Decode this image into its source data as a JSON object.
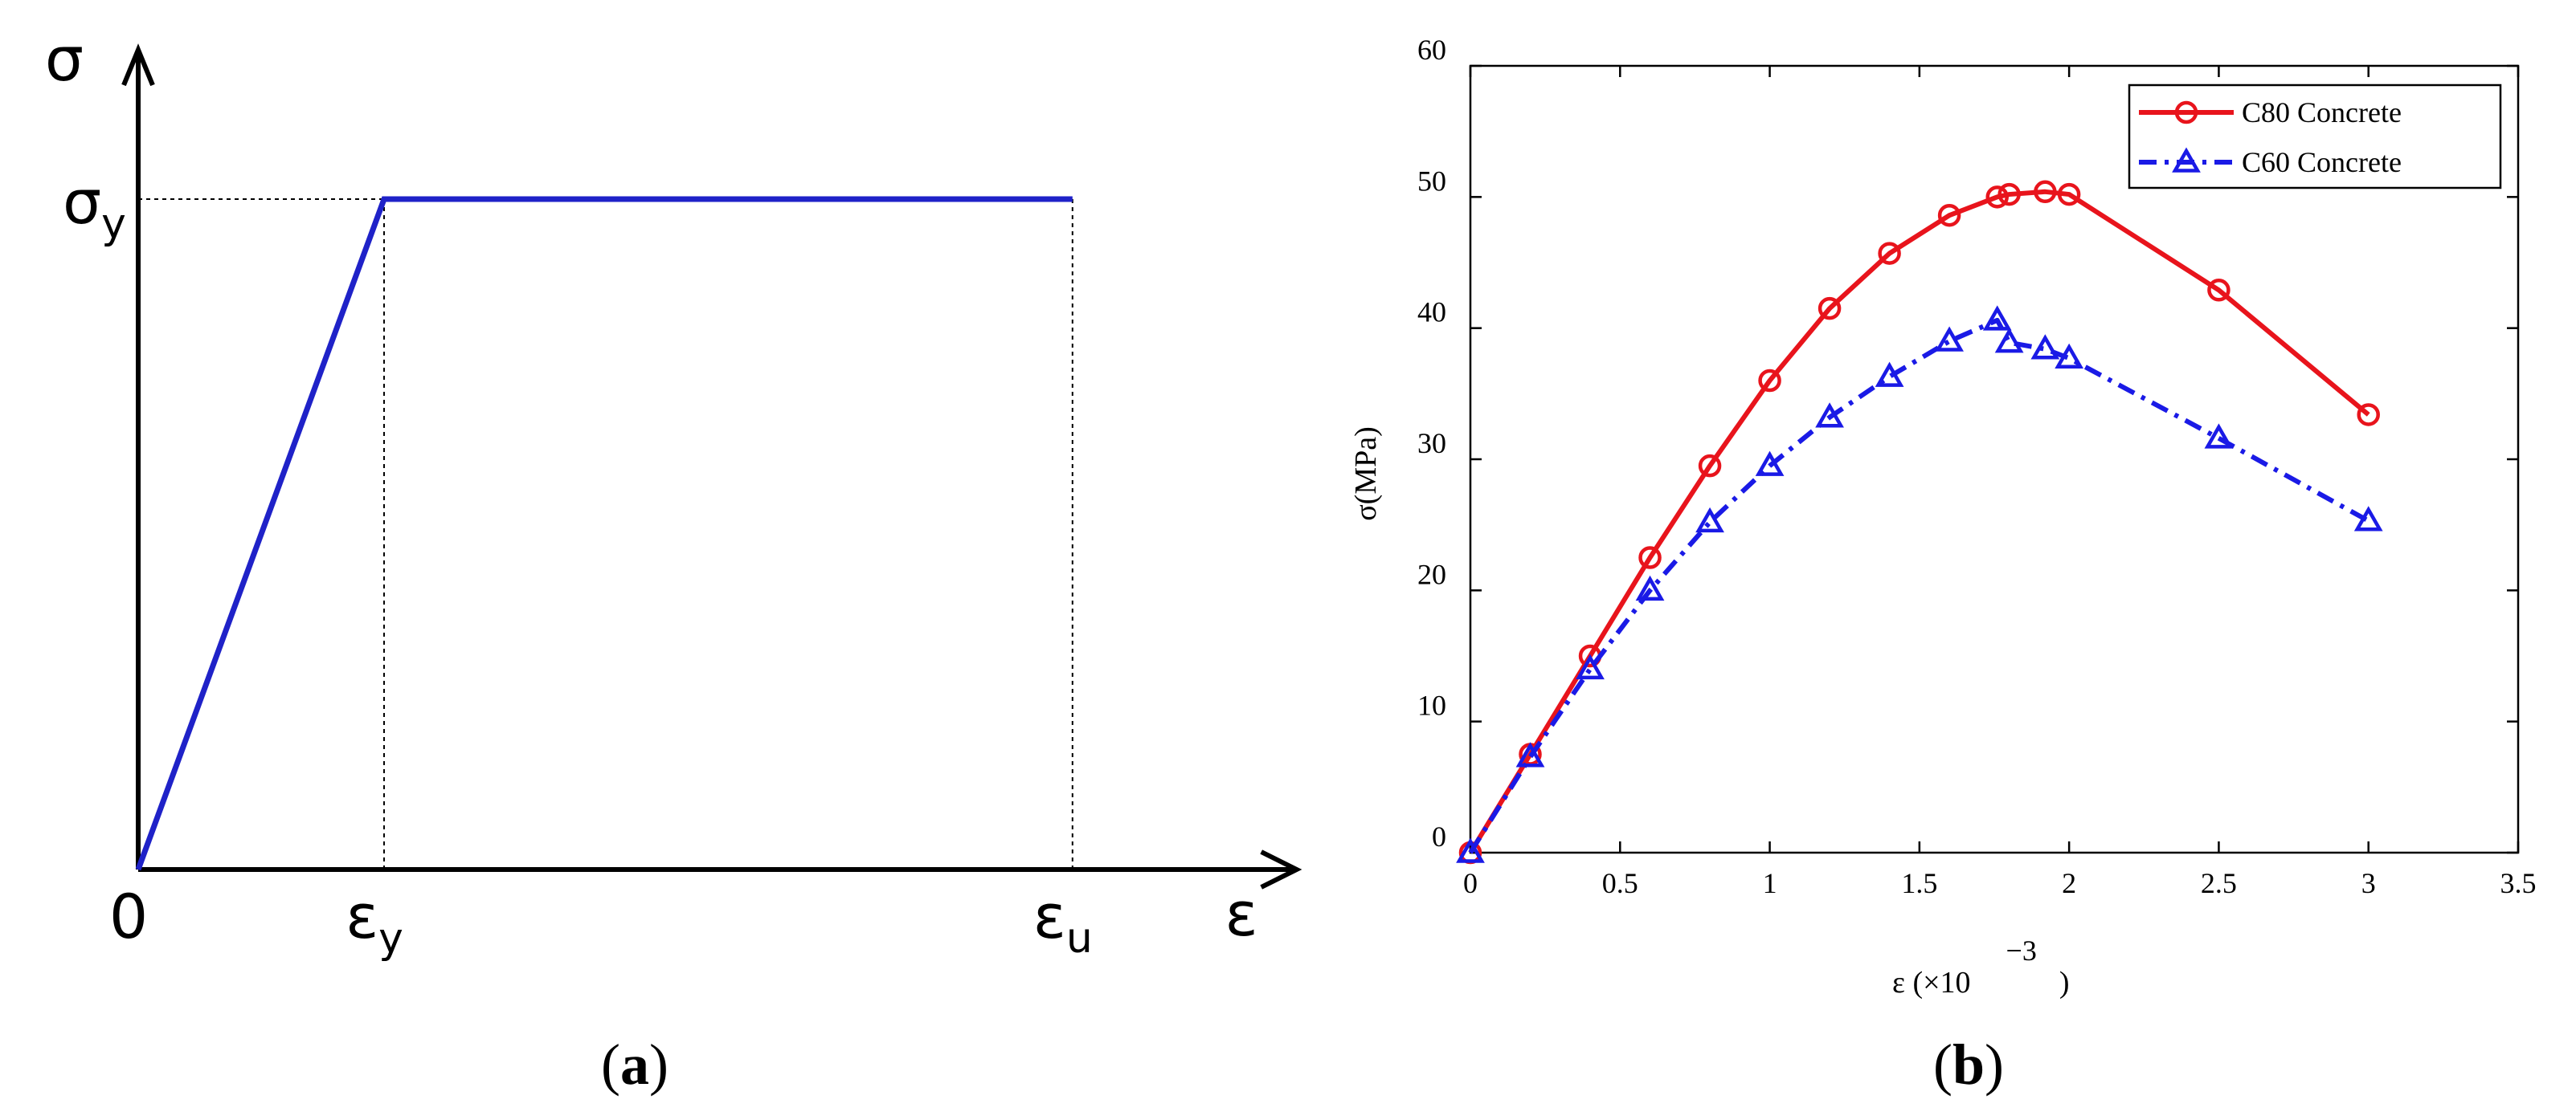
{
  "chart_data": [
    {
      "type": "line",
      "panel_label": "(a)",
      "subtitle": "",
      "xlabel": "ε",
      "ylabel": "σ",
      "x_ticks": [
        {
          "label": "0",
          "value": 0
        },
        {
          "label": "ε",
          "subscript": "y",
          "value": 1
        },
        {
          "label": "ε",
          "subscript": "u",
          "value": 3.8
        }
      ],
      "y_ticks": [
        {
          "label": "σ",
          "subscript": "y",
          "value": 1
        }
      ],
      "xlim": [
        0,
        4.45
      ],
      "ylim": [
        0,
        1.0
      ],
      "grid": false,
      "color": "#1f22c8",
      "series": [
        {
          "x": [
            0,
            1,
            3.8
          ],
          "y": [
            0,
            1,
            1
          ]
        }
      ],
      "guides": [
        {
          "from": [
            0,
            1
          ],
          "to": [
            1,
            1
          ]
        },
        {
          "from": [
            1,
            0
          ],
          "to": [
            1,
            1
          ]
        },
        {
          "from": [
            3.8,
            0
          ],
          "to": [
            3.8,
            1
          ]
        }
      ]
    },
    {
      "type": "line",
      "panel_label": "(b)",
      "xlabel": "ε (×10",
      "xlabel_exponent": "−3",
      "xlabel_close": ")",
      "ylabel": "σ(MPa)",
      "xlim": [
        0,
        3.5
      ],
      "ylim": [
        0,
        60
      ],
      "x_ticks": [
        {
          "label": "0",
          "value": 0
        },
        {
          "label": "0.5",
          "value": 0.5
        },
        {
          "label": "1",
          "value": 1
        },
        {
          "label": "1.5",
          "value": 1.5
        },
        {
          "label": "2",
          "value": 2
        },
        {
          "label": "2.5",
          "value": 2.5
        },
        {
          "label": "3",
          "value": 3
        },
        {
          "label": "3.5",
          "value": 3.5
        }
      ],
      "y_ticks": [
        {
          "label": "0",
          "value": 0
        },
        {
          "label": "10",
          "value": 10
        },
        {
          "label": "20",
          "value": 20
        },
        {
          "label": "30",
          "value": 30
        },
        {
          "label": "40",
          "value": 40
        },
        {
          "label": "50",
          "value": 50
        },
        {
          "label": "60",
          "value": 60
        }
      ],
      "grid": false,
      "legend_position": "top-right",
      "series": [
        {
          "name": "C80 Concrete",
          "color": "#e8141c",
          "marker": "circle",
          "line": "solid",
          "x": [
            0,
            0.2,
            0.4,
            0.6,
            0.8,
            1.0,
            1.2,
            1.4,
            1.6,
            1.76,
            1.8,
            1.92,
            2.0,
            2.5,
            3.0
          ],
          "y": [
            0,
            7.5,
            15,
            22.5,
            29.5,
            36,
            41.5,
            45.7,
            48.6,
            50,
            50.2,
            50.4,
            50.2,
            42.9,
            33.4
          ]
        },
        {
          "name": "C60 Concrete",
          "color": "#1a1ae6",
          "marker": "triangle",
          "line": "dashdot",
          "x": [
            0,
            0.2,
            0.4,
            0.6,
            0.8,
            1.0,
            1.2,
            1.4,
            1.6,
            1.76,
            1.8,
            1.92,
            2.0,
            2.5,
            3.0
          ],
          "y": [
            0,
            7.3,
            14,
            20,
            25.2,
            29.5,
            33.2,
            36.3,
            39,
            40.6,
            38.9,
            38.4,
            37.7,
            31.6,
            25.3
          ]
        }
      ]
    }
  ]
}
